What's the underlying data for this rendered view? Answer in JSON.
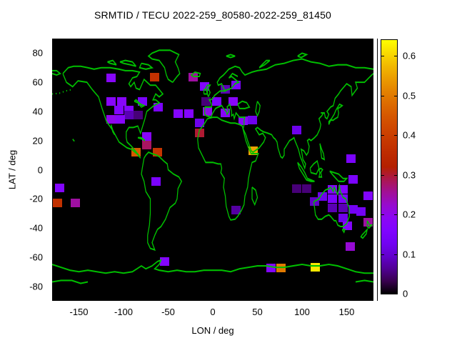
{
  "chart_data": {
    "type": "heatmap",
    "title": "SRMTID / TECU 2022-259_80580-2022-259_81450",
    "xlabel": "LON / deg",
    "ylabel": "LAT / deg",
    "xlim": [
      -180,
      180
    ],
    "ylim": [
      -90,
      90
    ],
    "grid": false,
    "plot_background": "#000000",
    "coastline_color": "#00bf00",
    "x_ticks": [
      -150,
      -100,
      -50,
      0,
      50,
      100,
      150
    ],
    "x_tick_labels": [
      "-150",
      "-100",
      "-50",
      "0",
      "50",
      "100",
      "150"
    ],
    "y_ticks": [
      80,
      60,
      40,
      20,
      0,
      -20,
      -40,
      -60,
      -80
    ],
    "y_tick_labels": [
      "80",
      "60",
      "40",
      "20",
      "0",
      "-20",
      "-40",
      "-60",
      "-80"
    ],
    "colorbar": {
      "min": 0,
      "max": 0.64,
      "ticks": [
        0,
        0.1,
        0.2,
        0.3,
        0.4,
        0.5,
        0.6
      ],
      "tick_labels": [
        "0",
        "0.1",
        "0.2",
        "0.3",
        "0.4",
        "0.5",
        "0.6"
      ],
      "palette": "gnuplot pm3d black-violet-magenta-red-orange-yellow"
    },
    "points_format": [
      "lon_deg",
      "lat_deg",
      "tecu_value"
    ],
    "points": [
      [
        -114,
        63,
        0.18
      ],
      [
        -65,
        63.5,
        0.37
      ],
      [
        -22,
        63.5,
        0.25
      ],
      [
        -114,
        47,
        0.18
      ],
      [
        -102,
        47,
        0.18
      ],
      [
        -79,
        47,
        0.15
      ],
      [
        -105,
        41,
        0.17
      ],
      [
        -94,
        41,
        0.17
      ],
      [
        -61,
        43,
        0.15
      ],
      [
        -94,
        37.5,
        0.08
      ],
      [
        -84,
        37.5,
        0.05
      ],
      [
        -114,
        34.5,
        0.2
      ],
      [
        -104,
        34.5,
        0.18
      ],
      [
        -74,
        23,
        0.18
      ],
      [
        -74,
        17,
        0.28
      ],
      [
        -86,
        12,
        0.45
      ],
      [
        -62,
        12,
        0.38
      ],
      [
        -9,
        57,
        0.17
      ],
      [
        14,
        55,
        0.08
      ],
      [
        26,
        58,
        0.15
      ],
      [
        -8,
        47,
        0.05
      ],
      [
        4,
        47,
        0.15
      ],
      [
        23,
        47,
        0.18
      ],
      [
        -39,
        38.5,
        0.17
      ],
      [
        -27,
        38.5,
        0.17
      ],
      [
        -6,
        40,
        0.2
      ],
      [
        14,
        39,
        0.18
      ],
      [
        34,
        33.5,
        0.18
      ],
      [
        44,
        34,
        0.12
      ],
      [
        -15,
        32,
        0.12
      ],
      [
        -15,
        25.5,
        0.3
      ],
      [
        45,
        13,
        0.55
      ],
      [
        94,
        27,
        0.12
      ],
      [
        26,
        -27.5,
        0.07
      ],
      [
        94,
        -13,
        0.05
      ],
      [
        105,
        -13,
        0.05
      ],
      [
        -172,
        -12.5,
        0.17
      ],
      [
        -174,
        -23,
        0.37
      ],
      [
        -154,
        -23,
        0.25
      ],
      [
        -64,
        -8,
        0.15
      ],
      [
        155,
        7.5,
        0.15
      ],
      [
        157,
        -6.5,
        0.15
      ],
      [
        134,
        -13.5,
        0.17
      ],
      [
        146,
        -13.5,
        0.17
      ],
      [
        123,
        -18.5,
        0.12
      ],
      [
        114,
        -22,
        0.09
      ],
      [
        134,
        -20,
        0.15
      ],
      [
        146,
        -20,
        0.15
      ],
      [
        134,
        -26,
        0.08
      ],
      [
        146,
        -26,
        0.08
      ],
      [
        157,
        -27,
        0.13
      ],
      [
        146,
        -33,
        0.12
      ],
      [
        151,
        -38.5,
        0.17
      ],
      [
        166,
        -28.5,
        0.13
      ],
      [
        174,
        -18,
        0.17
      ],
      [
        174,
        -36,
        0.25
      ],
      [
        154,
        -52.5,
        0.22
      ],
      [
        -54,
        -63,
        0.17
      ],
      [
        65,
        -67.5,
        0.17
      ],
      [
        76,
        -67.5,
        0.5
      ],
      [
        115,
        -67,
        0.62
      ]
    ]
  }
}
